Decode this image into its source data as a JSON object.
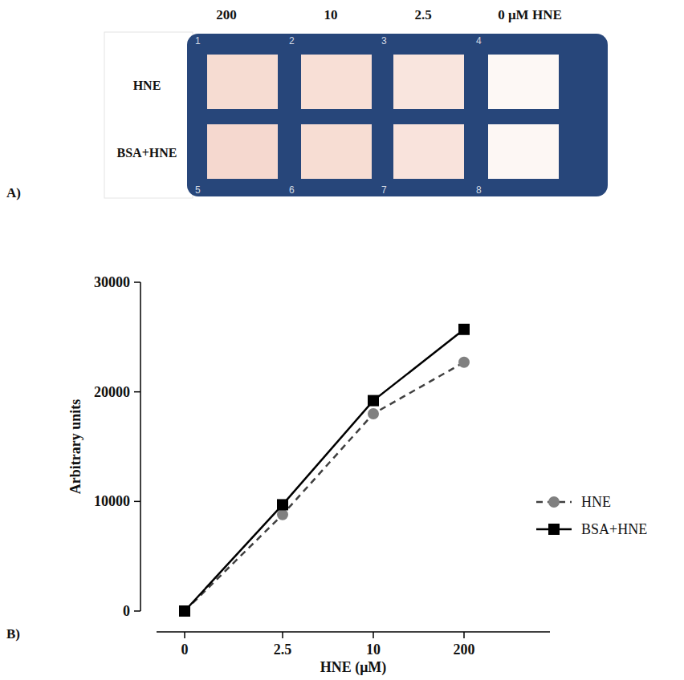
{
  "panel_a": {
    "label": "A)",
    "columns": [
      "200",
      "10",
      "2.5",
      "0 μM HNE"
    ],
    "rows": [
      "HNE",
      "BSA+HNE"
    ],
    "wells": [
      {
        "number": "1",
        "color": "#f6dcd2"
      },
      {
        "number": "2",
        "color": "#f8dfd6"
      },
      {
        "number": "3",
        "color": "#f9e5de"
      },
      {
        "number": "4",
        "color": "#fdf8f5"
      },
      {
        "number": "5",
        "color": "#f5d8cf"
      },
      {
        "number": "6",
        "color": "#f7ddd3"
      },
      {
        "number": "7",
        "color": "#f9e3dc"
      },
      {
        "number": "8",
        "color": "#fdf7f4"
      }
    ]
  },
  "panel_b": {
    "label": "B)"
  },
  "chart_data": {
    "type": "line",
    "x_label": "HNE (μM)",
    "y_label": "Arbitrary units",
    "categories": [
      "0",
      "2.5",
      "10",
      "200"
    ],
    "series": [
      {
        "name": "HNE",
        "color": "#808080",
        "marker": "circle",
        "line_style": "dashed",
        "values": [
          0,
          8800,
          18000,
          22700
        ]
      },
      {
        "name": "BSA+HNE",
        "color": "#000000",
        "marker": "square",
        "line_style": "solid",
        "values": [
          0,
          9700,
          19200,
          25700
        ]
      }
    ],
    "ylim": [
      0,
      30000
    ],
    "yticks": [
      0,
      10000,
      20000,
      30000
    ],
    "grid": false,
    "legend": "right"
  }
}
